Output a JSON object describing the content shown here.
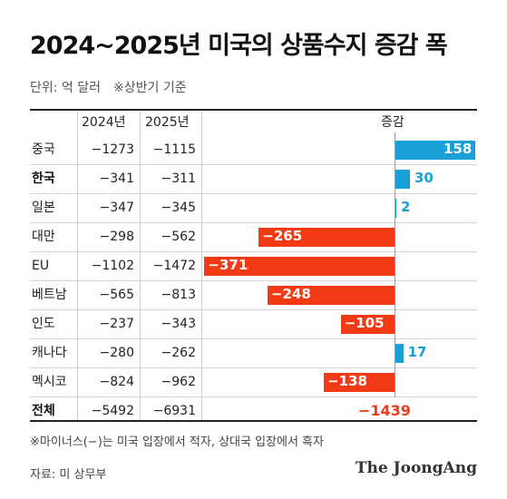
{
  "title": "2024~2025년 미국의 상품수지 증감 폭",
  "unit_label": "단위: 억 달러",
  "period_note": "※상반기 기준",
  "footnote": "※마이너스(−)는 미국 입장에서 적자, 상대국 입장에서 흑자",
  "source": "자료: 미 상무부",
  "logo": "The JoongAng",
  "colors": {
    "positive": "#1a9fd6",
    "negative": "#f23b16",
    "label_on_bar": "#ffffff"
  },
  "chart_data": {
    "type": "table",
    "columns": [
      "",
      "2024년",
      "2025년",
      "증감"
    ],
    "rows": [
      {
        "name": "중국",
        "y2024": "−1273",
        "y2025": "−1115",
        "change": 158,
        "change_label": "158",
        "bold": false
      },
      {
        "name": "한국",
        "y2024": "−341",
        "y2025": "−311",
        "change": 30,
        "change_label": "30",
        "bold": true
      },
      {
        "name": "일본",
        "y2024": "−347",
        "y2025": "−345",
        "change": 2,
        "change_label": "2",
        "bold": false
      },
      {
        "name": "대만",
        "y2024": "−298",
        "y2025": "−562",
        "change": -265,
        "change_label": "−265",
        "bold": false
      },
      {
        "name": "EU",
        "y2024": "−1102",
        "y2025": "−1472",
        "change": -371,
        "change_label": "−371",
        "bold": false
      },
      {
        "name": "베트남",
        "y2024": "−565",
        "y2025": "−813",
        "change": -248,
        "change_label": "−248",
        "bold": false
      },
      {
        "name": "인도",
        "y2024": "−237",
        "y2025": "−343",
        "change": -105,
        "change_label": "−105",
        "bold": false
      },
      {
        "name": "캐나다",
        "y2024": "−280",
        "y2025": "−262",
        "change": 17,
        "change_label": "17",
        "bold": false
      },
      {
        "name": "멕시코",
        "y2024": "−824",
        "y2025": "−962",
        "change": -138,
        "change_label": "−138",
        "bold": false
      }
    ],
    "total": {
      "name": "전체",
      "y2024": "−5492",
      "y2025": "−6931",
      "change": -1439,
      "change_label": "−1439"
    }
  }
}
